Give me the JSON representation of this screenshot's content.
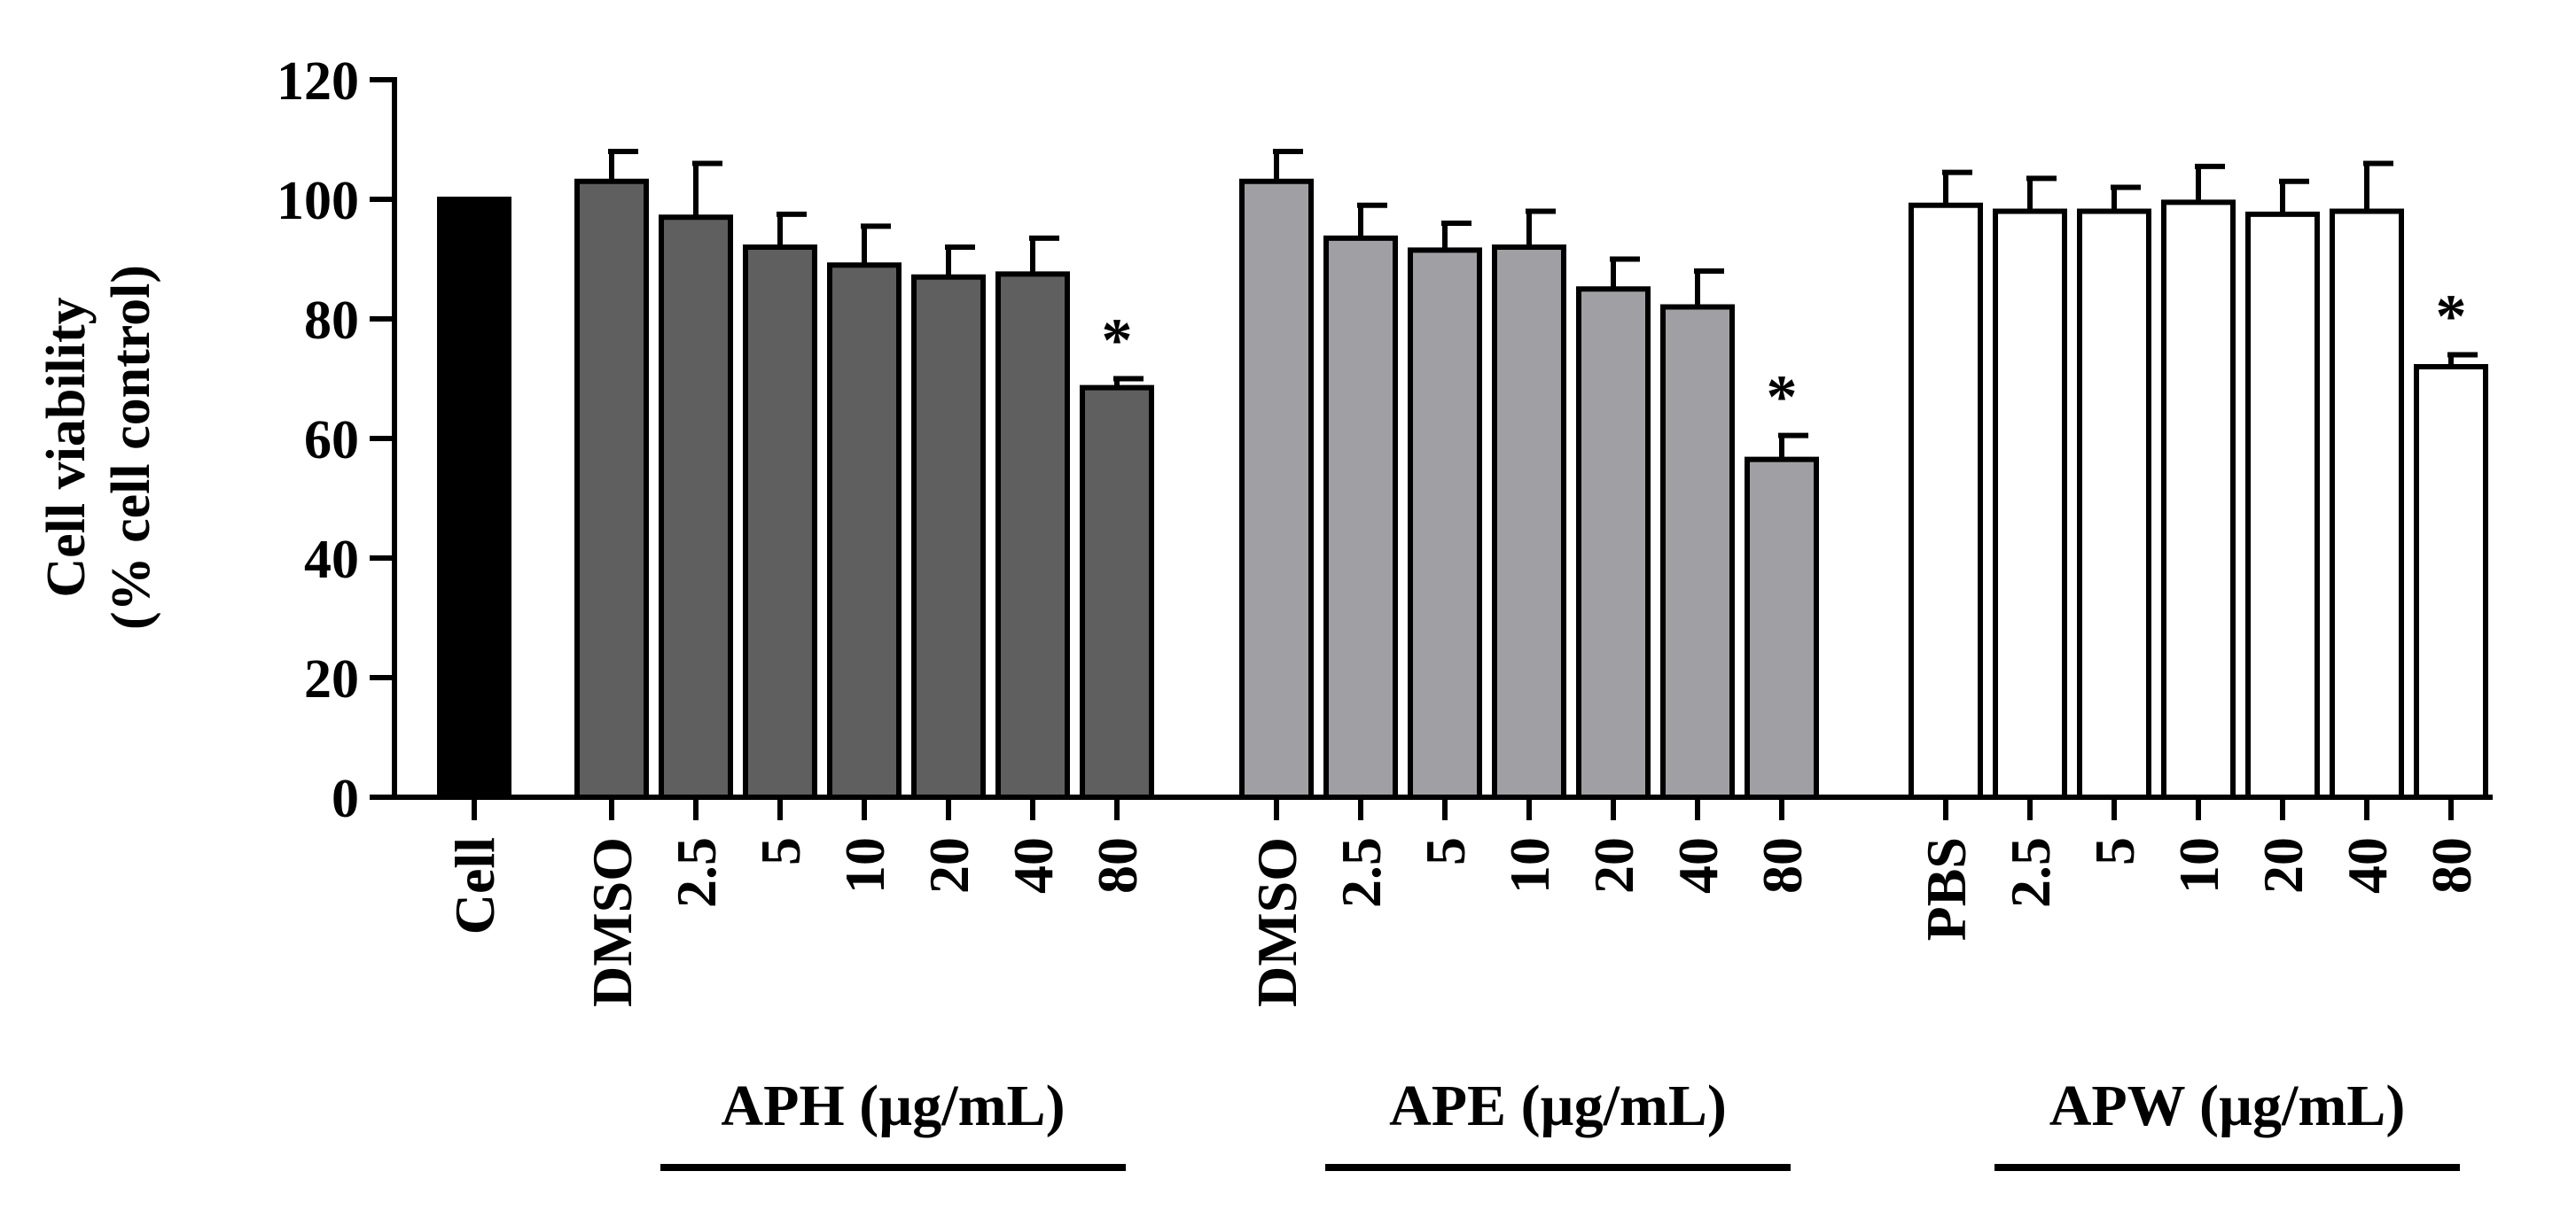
{
  "chart_data": {
    "type": "bar",
    "title": "",
    "xlabel": "",
    "ylabel_line1": "Cell viability",
    "ylabel_line2": "(% cell control)",
    "ylim": [
      0,
      120
    ],
    "yticks": [
      0,
      20,
      40,
      60,
      80,
      100,
      120
    ],
    "grid": false,
    "colors": {
      "cell": "#000000",
      "aph": "#5f5f5f",
      "ape": "#a0a0a4",
      "apw": "#ffffff",
      "stroke": "#000000"
    },
    "groups": [
      {
        "key": "cell",
        "label": "",
        "bars": [
          {
            "category": "Cell",
            "value": 100,
            "error": 0,
            "significant": false
          }
        ]
      },
      {
        "key": "aph",
        "label": "APH (µg/mL)",
        "bars": [
          {
            "category": "DMSO",
            "value": 103,
            "error": 5,
            "significant": false
          },
          {
            "category": "2.5",
            "value": 97,
            "error": 9,
            "significant": false
          },
          {
            "category": "5",
            "value": 92,
            "error": 5.5,
            "significant": false
          },
          {
            "category": "10",
            "value": 89,
            "error": 6.5,
            "significant": false
          },
          {
            "category": "20",
            "value": 87,
            "error": 5,
            "significant": false
          },
          {
            "category": "40",
            "value": 87.5,
            "error": 6,
            "significant": false
          },
          {
            "category": "80",
            "value": 68.5,
            "error": 1.5,
            "significant": true
          }
        ]
      },
      {
        "key": "ape",
        "label": "APE (µg/mL)",
        "bars": [
          {
            "category": "DMSO",
            "value": 103,
            "error": 5,
            "significant": false
          },
          {
            "category": "2.5",
            "value": 93.5,
            "error": 5.5,
            "significant": false
          },
          {
            "category": "5",
            "value": 91.5,
            "error": 4.5,
            "significant": false
          },
          {
            "category": "10",
            "value": 92,
            "error": 6,
            "significant": false
          },
          {
            "category": "20",
            "value": 85,
            "error": 5,
            "significant": false
          },
          {
            "category": "40",
            "value": 82,
            "error": 6,
            "significant": false
          },
          {
            "category": "80",
            "value": 56.5,
            "error": 4,
            "significant": true
          }
        ]
      },
      {
        "key": "apw",
        "label": "APW (µg/mL)",
        "bars": [
          {
            "category": "PBS",
            "value": 99,
            "error": 5.5,
            "significant": false
          },
          {
            "category": "2.5",
            "value": 98,
            "error": 5.5,
            "significant": false
          },
          {
            "category": "5",
            "value": 98,
            "error": 4,
            "significant": false
          },
          {
            "category": "10",
            "value": 99.5,
            "error": 6,
            "significant": false
          },
          {
            "category": "20",
            "value": 97.5,
            "error": 5.5,
            "significant": false
          },
          {
            "category": "40",
            "value": 98,
            "error": 8,
            "significant": false
          },
          {
            "category": "80",
            "value": 72,
            "error": 2,
            "significant": true
          }
        ]
      }
    ],
    "significance_marker": "*"
  }
}
